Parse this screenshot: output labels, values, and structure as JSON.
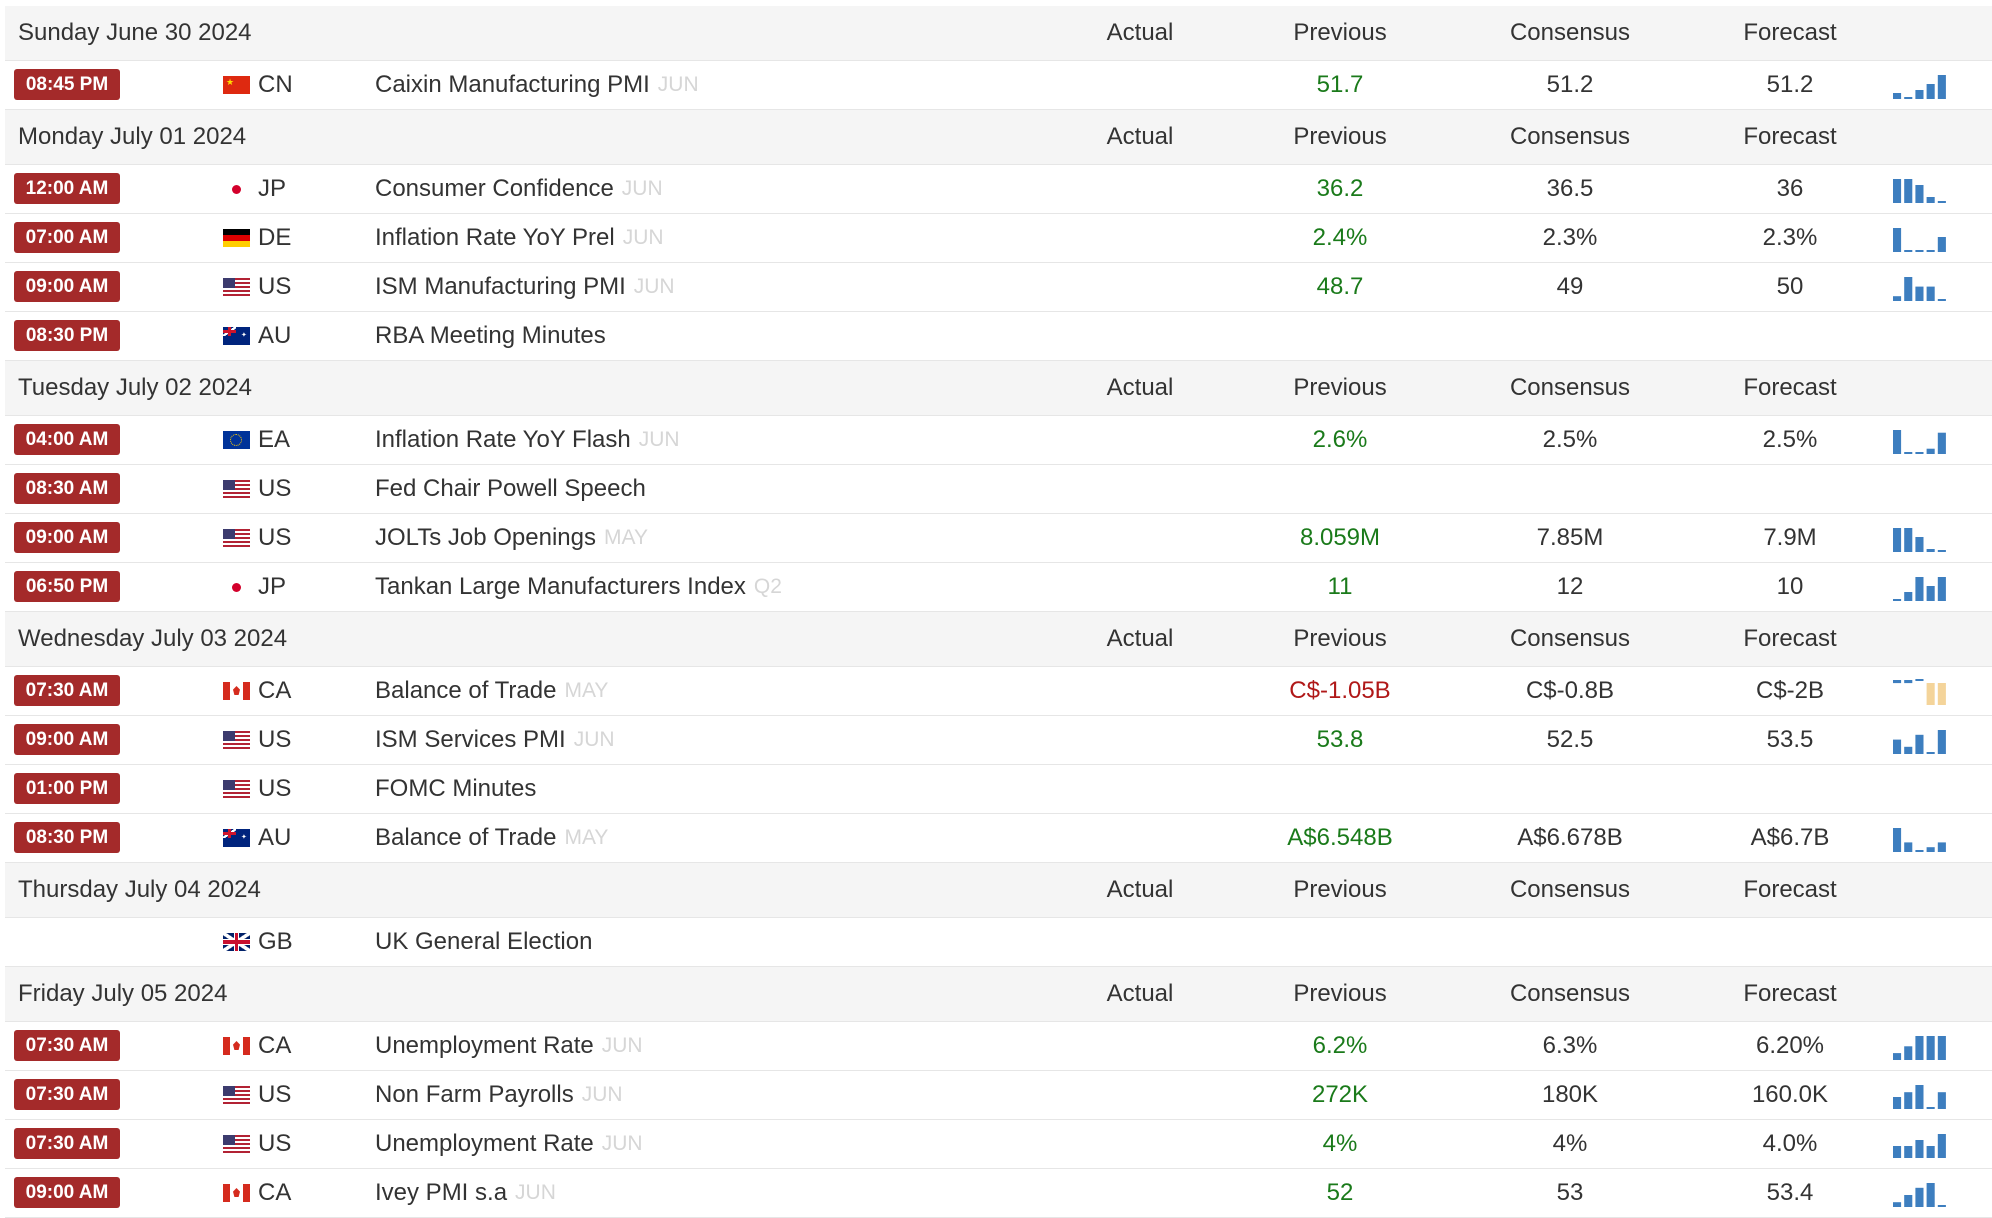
{
  "columns": {
    "actual": "Actual",
    "previous": "Previous",
    "consensus": "Consensus",
    "forecast": "Forecast"
  },
  "colors": {
    "time_badge_bg": "#a42a2a",
    "positive_value": "#1a7a1a",
    "negative_value": "#b01818",
    "spark_bar": "#3d7ebf",
    "spark_bar_highlight": "#f4d49a",
    "header_bg": "#f5f5f5"
  },
  "days": [
    {
      "date": "Sunday June 30 2024",
      "events": [
        {
          "time": "08:45 PM",
          "country": "CN",
          "flag": "cn-flag-icon",
          "event": "Caixin Manufacturing PMI",
          "ref": "JUN",
          "actual": "",
          "previous": "51.7",
          "previous_tone": "green",
          "consensus": "51.2",
          "forecast": "51.2",
          "spark": [
            2,
            0,
            3,
            5,
            8
          ]
        }
      ]
    },
    {
      "date": "Monday July 01 2024",
      "events": [
        {
          "time": "12:00 AM",
          "country": "JP",
          "flag": "jp-flag-icon",
          "event": "Consumer Confidence",
          "ref": "JUN",
          "actual": "",
          "previous": "36.2",
          "previous_tone": "green",
          "consensus": "36.5",
          "forecast": "36",
          "spark": [
            8,
            8,
            6,
            2,
            0
          ]
        },
        {
          "time": "07:00 AM",
          "country": "DE",
          "flag": "de-flag-icon",
          "event": "Inflation Rate YoY Prel",
          "ref": "JUN",
          "actual": "",
          "previous": "2.4%",
          "previous_tone": "green",
          "consensus": "2.3%",
          "forecast": "2.3%",
          "spark": [
            8,
            0,
            0,
            0,
            5
          ]
        },
        {
          "time": "09:00 AM",
          "country": "US",
          "flag": "us-flag-icon",
          "event": "ISM Manufacturing PMI",
          "ref": "JUN",
          "actual": "",
          "previous": "48.7",
          "previous_tone": "green",
          "consensus": "49",
          "forecast": "50",
          "spark": [
            2,
            10,
            6,
            6,
            0
          ]
        },
        {
          "time": "08:30 PM",
          "country": "AU",
          "flag": "au-flag-icon",
          "event": "RBA Meeting Minutes",
          "ref": "",
          "actual": "",
          "previous": "",
          "previous_tone": "plain",
          "consensus": "",
          "forecast": "",
          "spark": []
        }
      ]
    },
    {
      "date": "Tuesday July 02 2024",
      "events": [
        {
          "time": "04:00 AM",
          "country": "EA",
          "flag": "eu-flag-icon",
          "event": "Inflation Rate YoY Flash",
          "ref": "JUN",
          "actual": "",
          "previous": "2.6%",
          "previous_tone": "green",
          "consensus": "2.5%",
          "forecast": "2.5%",
          "spark": [
            9,
            0,
            0,
            2,
            8
          ]
        },
        {
          "time": "08:30 AM",
          "country": "US",
          "flag": "us-flag-icon",
          "event": "Fed Chair Powell Speech",
          "ref": "",
          "actual": "",
          "previous": "",
          "previous_tone": "plain",
          "consensus": "",
          "forecast": "",
          "spark": []
        },
        {
          "time": "09:00 AM",
          "country": "US",
          "flag": "us-flag-icon",
          "event": "JOLTs Job Openings",
          "ref": "MAY",
          "actual": "",
          "previous": "8.059M",
          "previous_tone": "green",
          "consensus": "7.85M",
          "forecast": "7.9M",
          "spark": [
            8,
            8,
            5,
            1,
            0
          ]
        },
        {
          "time": "06:50 PM",
          "country": "JP",
          "flag": "jp-flag-icon",
          "event": "Tankan Large Manufacturers Index",
          "ref": "Q2",
          "actual": "",
          "previous": "11",
          "previous_tone": "green",
          "consensus": "12",
          "forecast": "10",
          "spark": [
            0,
            3,
            8,
            5,
            8
          ]
        }
      ]
    },
    {
      "date": "Wednesday July 03 2024",
      "events": [
        {
          "time": "07:30 AM",
          "country": "CA",
          "flag": "ca-flag-icon",
          "event": "Balance of Trade",
          "ref": "MAY",
          "actual": "",
          "previous": "C$-1.05B",
          "previous_tone": "red",
          "consensus": "C$-0.8B",
          "forecast": "C$-2B",
          "spark": [
            -1,
            -1,
            0,
            -7,
            -7
          ]
        },
        {
          "time": "09:00 AM",
          "country": "US",
          "flag": "us-flag-icon",
          "event": "ISM Services PMI",
          "ref": "JUN",
          "actual": "",
          "previous": "53.8",
          "previous_tone": "green",
          "consensus": "52.5",
          "forecast": "53.5",
          "spark": [
            6,
            3,
            8,
            0,
            10
          ]
        },
        {
          "time": "01:00 PM",
          "country": "US",
          "flag": "us-flag-icon",
          "event": "FOMC Minutes",
          "ref": "",
          "actual": "",
          "previous": "",
          "previous_tone": "plain",
          "consensus": "",
          "forecast": "",
          "spark": []
        },
        {
          "time": "08:30 PM",
          "country": "AU",
          "flag": "au-flag-icon",
          "event": "Balance of Trade",
          "ref": "MAY",
          "actual": "",
          "previous": "A$6.548B",
          "previous_tone": "green",
          "consensus": "A$6.678B",
          "forecast": "A$6.7B",
          "spark": [
            10,
            4,
            0,
            2,
            4
          ]
        }
      ]
    },
    {
      "date": "Thursday July 04 2024",
      "events": [
        {
          "time": "",
          "country": "GB",
          "flag": "gb-flag-icon",
          "event": "UK General Election",
          "ref": "",
          "actual": "",
          "previous": "",
          "previous_tone": "plain",
          "consensus": "",
          "forecast": "",
          "spark": []
        }
      ]
    },
    {
      "date": "Friday July 05 2024",
      "events": [
        {
          "time": "07:30 AM",
          "country": "CA",
          "flag": "ca-flag-icon",
          "event": "Unemployment Rate",
          "ref": "JUN",
          "actual": "",
          "previous": "6.2%",
          "previous_tone": "green",
          "consensus": "6.3%",
          "forecast": "6.20%",
          "spark": [
            2,
            4,
            7,
            7,
            7
          ]
        },
        {
          "time": "07:30 AM",
          "country": "US",
          "flag": "us-flag-icon",
          "event": "Non Farm Payrolls",
          "ref": "JUN",
          "actual": "",
          "previous": "272K",
          "previous_tone": "green",
          "consensus": "180K",
          "forecast": "160.0K",
          "spark": [
            5,
            7,
            10,
            0,
            7
          ]
        },
        {
          "time": "07:30 AM",
          "country": "US",
          "flag": "us-flag-icon",
          "event": "Unemployment Rate",
          "ref": "JUN",
          "actual": "",
          "previous": "4%",
          "previous_tone": "green",
          "consensus": "4%",
          "forecast": "4.0%",
          "spark": [
            4,
            4,
            6,
            4,
            8
          ]
        },
        {
          "time": "09:00 AM",
          "country": "CA",
          "flag": "ca-flag-icon",
          "event": "Ivey PMI s.a",
          "ref": "JUN",
          "actual": "",
          "previous": "52",
          "previous_tone": "green",
          "consensus": "53",
          "forecast": "53.4",
          "spark": [
            2,
            5,
            8,
            10,
            0
          ]
        }
      ]
    }
  ]
}
